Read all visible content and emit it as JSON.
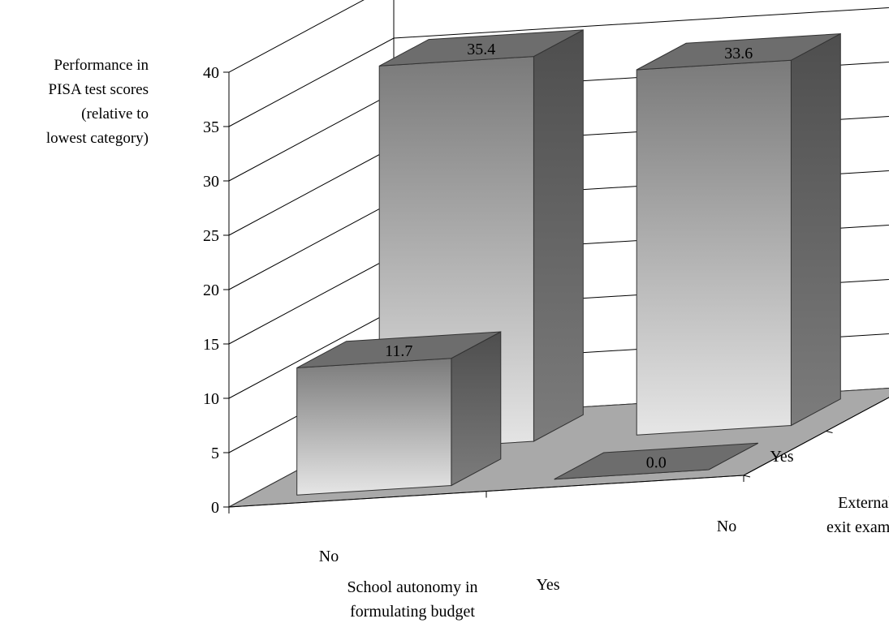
{
  "chart_data": {
    "type": "bar",
    "subtype": "3d-column",
    "title": "",
    "ylabel_lines": [
      "Performance in",
      "PISA test scores",
      "(relative to",
      "lowest category)"
    ],
    "x_axis": {
      "label_lines": [
        "School autonomy in",
        "formulating budget"
      ],
      "categories": [
        "No",
        "Yes"
      ]
    },
    "depth_axis": {
      "label_lines": [
        "External",
        "exit exams"
      ],
      "categories": [
        "No",
        "Yes"
      ]
    },
    "yticks": [
      0,
      5,
      10,
      15,
      20,
      25,
      30,
      35,
      40
    ],
    "ylim": [
      0,
      40
    ],
    "grid": true,
    "bars": [
      {
        "x": "No",
        "depth": "No",
        "value": 11.7,
        "label": "11.7"
      },
      {
        "x": "No",
        "depth": "Yes",
        "value": 35.4,
        "label": "35.4"
      },
      {
        "x": "Yes",
        "depth": "No",
        "value": 0.0,
        "label": "0.0"
      },
      {
        "x": "Yes",
        "depth": "Yes",
        "value": 33.6,
        "label": "33.6"
      }
    ],
    "colors": {
      "floor": "#a9a9a9",
      "bar_top": "#6d6d6d",
      "bar_side": "#5a5a5a",
      "bar_front_light": "#e4e4e4",
      "bar_front_dark": "#7a7a7a"
    }
  }
}
